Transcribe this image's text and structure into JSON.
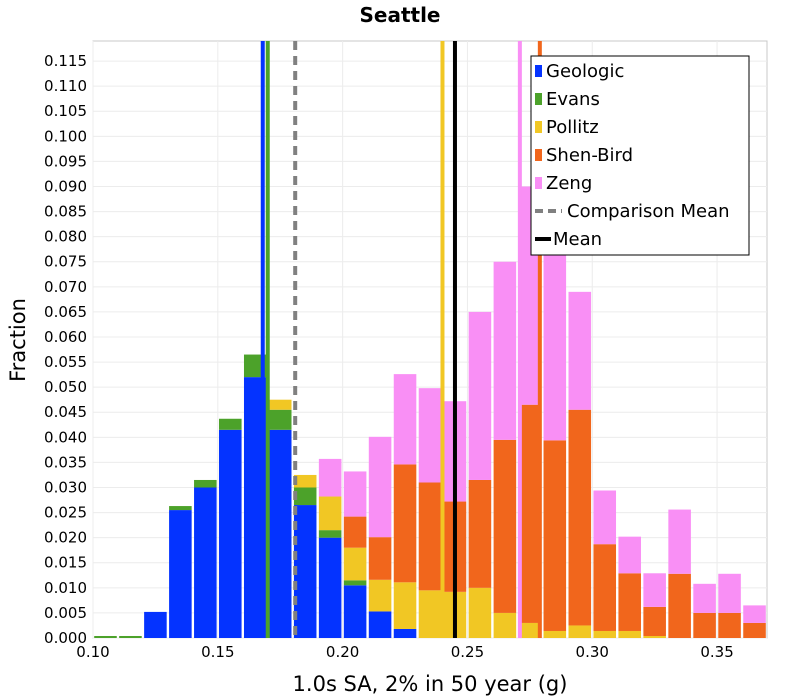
{
  "chart_data": {
    "type": "bar",
    "stacked": true,
    "title": "Seattle",
    "xlabel": "1.0s SA, 2% in 50 year (g)",
    "ylabel": "Fraction",
    "xlim": [
      0.1,
      0.37
    ],
    "ylim": [
      0.0,
      0.119
    ],
    "x_ticks": [
      "0.10",
      "0.15",
      "0.20",
      "0.25",
      "0.30",
      "0.35"
    ],
    "y_ticks": [
      "0.000",
      "0.005",
      "0.010",
      "0.015",
      "0.020",
      "0.025",
      "0.030",
      "0.035",
      "0.040",
      "0.045",
      "0.050",
      "0.055",
      "0.060",
      "0.065",
      "0.070",
      "0.075",
      "0.080",
      "0.085",
      "0.090",
      "0.095",
      "0.100",
      "0.105",
      "0.110",
      "0.115"
    ],
    "grid": true,
    "legend_position": "top-right",
    "bin_width": 0.01,
    "bin_starts": [
      0.1,
      0.11,
      0.12,
      0.13,
      0.14,
      0.15,
      0.16,
      0.17,
      0.18,
      0.19,
      0.2,
      0.21,
      0.22,
      0.23,
      0.24,
      0.25,
      0.26,
      0.27,
      0.28,
      0.29,
      0.3,
      0.31,
      0.32,
      0.33,
      0.34,
      0.35,
      0.36
    ],
    "series": [
      {
        "name": "Geologic",
        "color": "#0433ff",
        "values": [
          0.0,
          0.0,
          0.0052,
          0.0255,
          0.03,
          0.0415,
          0.052,
          0.0415,
          0.0265,
          0.02,
          0.0105,
          0.0053,
          0.0018,
          0,
          0,
          0,
          0,
          0,
          0,
          0,
          0,
          0,
          0,
          0,
          0,
          0,
          0
        ]
      },
      {
        "name": "Evans",
        "color": "#4ca22a",
        "values": [
          0.0004,
          0.0004,
          0.0,
          0.0008,
          0.0015,
          0.0022,
          0.0045,
          0.004,
          0.0035,
          0.0015,
          0.001,
          0.0,
          0,
          0,
          0,
          0,
          0,
          0,
          0,
          0,
          0,
          0,
          0,
          0,
          0,
          0,
          0
        ]
      },
      {
        "name": "Pollitz",
        "color": "#f1c724",
        "values": [
          0,
          0,
          0,
          0,
          0,
          0,
          0,
          0.002,
          0.0025,
          0.0067,
          0.0065,
          0.0063,
          0.0093,
          0.0095,
          0.0092,
          0.01,
          0.005,
          0.003,
          0.0014,
          0.0025,
          0.0014,
          0.0014,
          0.0004,
          0,
          0,
          0,
          0
        ]
      },
      {
        "name": "Shen-Bird",
        "color": "#f1661c",
        "values": [
          0,
          0,
          0,
          0,
          0,
          0,
          0,
          0,
          0,
          0,
          0.0062,
          0.0085,
          0.0235,
          0.0215,
          0.018,
          0.0215,
          0.0345,
          0.0435,
          0.038,
          0.043,
          0.0173,
          0.0115,
          0.0058,
          0.0128,
          0.005,
          0.005,
          0.003
        ]
      },
      {
        "name": "Zeng",
        "color": "#f98ff5",
        "values": [
          0,
          0,
          0,
          0,
          0,
          0,
          0,
          0,
          0,
          0.0075,
          0.009,
          0.02,
          0.018,
          0.0188,
          0.02,
          0.0335,
          0.0355,
          0.0435,
          0.0405,
          0.0235,
          0.0107,
          0.0073,
          0.0067,
          0.0128,
          0.0058,
          0.0078,
          0.0035
        ]
      }
    ],
    "vertical_lines": [
      {
        "series": "Geologic",
        "x": 0.168,
        "color": "#0433ff",
        "style": "solid"
      },
      {
        "series": "Evans",
        "x": 0.17,
        "color": "#4ca22a",
        "style": "solid"
      },
      {
        "series": "Pollitz",
        "x": 0.24,
        "color": "#f1c724",
        "style": "solid"
      },
      {
        "series": "Shen-Bird",
        "x": 0.279,
        "color": "#f1661c",
        "style": "solid"
      },
      {
        "series": "Zeng",
        "x": 0.271,
        "color": "#f98ff5",
        "style": "solid"
      },
      {
        "series": "Comparison Mean",
        "x": 0.181,
        "color": "#808080",
        "style": "dashed"
      },
      {
        "series": "Mean",
        "x": 0.245,
        "color": "#000000",
        "style": "solid"
      }
    ],
    "legend": [
      {
        "label": "Geologic",
        "color": "#0433ff",
        "kind": "box"
      },
      {
        "label": "Evans",
        "color": "#4ca22a",
        "kind": "box"
      },
      {
        "label": "Pollitz",
        "color": "#f1c724",
        "kind": "box"
      },
      {
        "label": "Shen-Bird",
        "color": "#f1661c",
        "kind": "box"
      },
      {
        "label": "Zeng",
        "color": "#f98ff5",
        "kind": "box"
      },
      {
        "label": "Comparison Mean",
        "color": "#808080",
        "kind": "dashed"
      },
      {
        "label": "Mean",
        "color": "#000000",
        "kind": "line"
      }
    ]
  }
}
